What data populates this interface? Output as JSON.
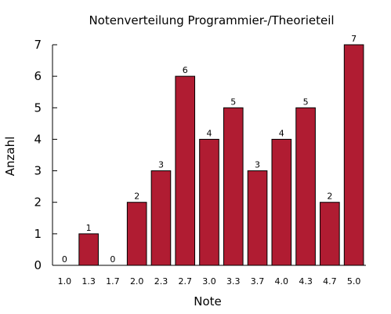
{
  "chart_data": {
    "type": "bar",
    "title": "Notenverteilung Programmier-/Theorieteil",
    "xlabel": "Note",
    "ylabel": "Anzahl",
    "categories": [
      "1.0",
      "1.3",
      "1.7",
      "2.0",
      "2.3",
      "2.7",
      "3.0",
      "3.3",
      "3.7",
      "4.0",
      "4.3",
      "4.7",
      "5.0"
    ],
    "values": [
      0,
      1,
      0,
      2,
      3,
      6,
      4,
      5,
      3,
      4,
      5,
      2,
      7
    ],
    "value_labels": [
      "0",
      "1",
      "0",
      "2",
      "3",
      "6",
      "4",
      "5",
      "3",
      "4",
      "5",
      "2",
      "7"
    ],
    "ylim": [
      0,
      7
    ],
    "yticks": [
      "0",
      "1",
      "2",
      "3",
      "4",
      "5",
      "6",
      "7"
    ],
    "grid": false,
    "legend": "none",
    "bar_color": "#b01c32",
    "bar_edge_color": "#000000"
  }
}
